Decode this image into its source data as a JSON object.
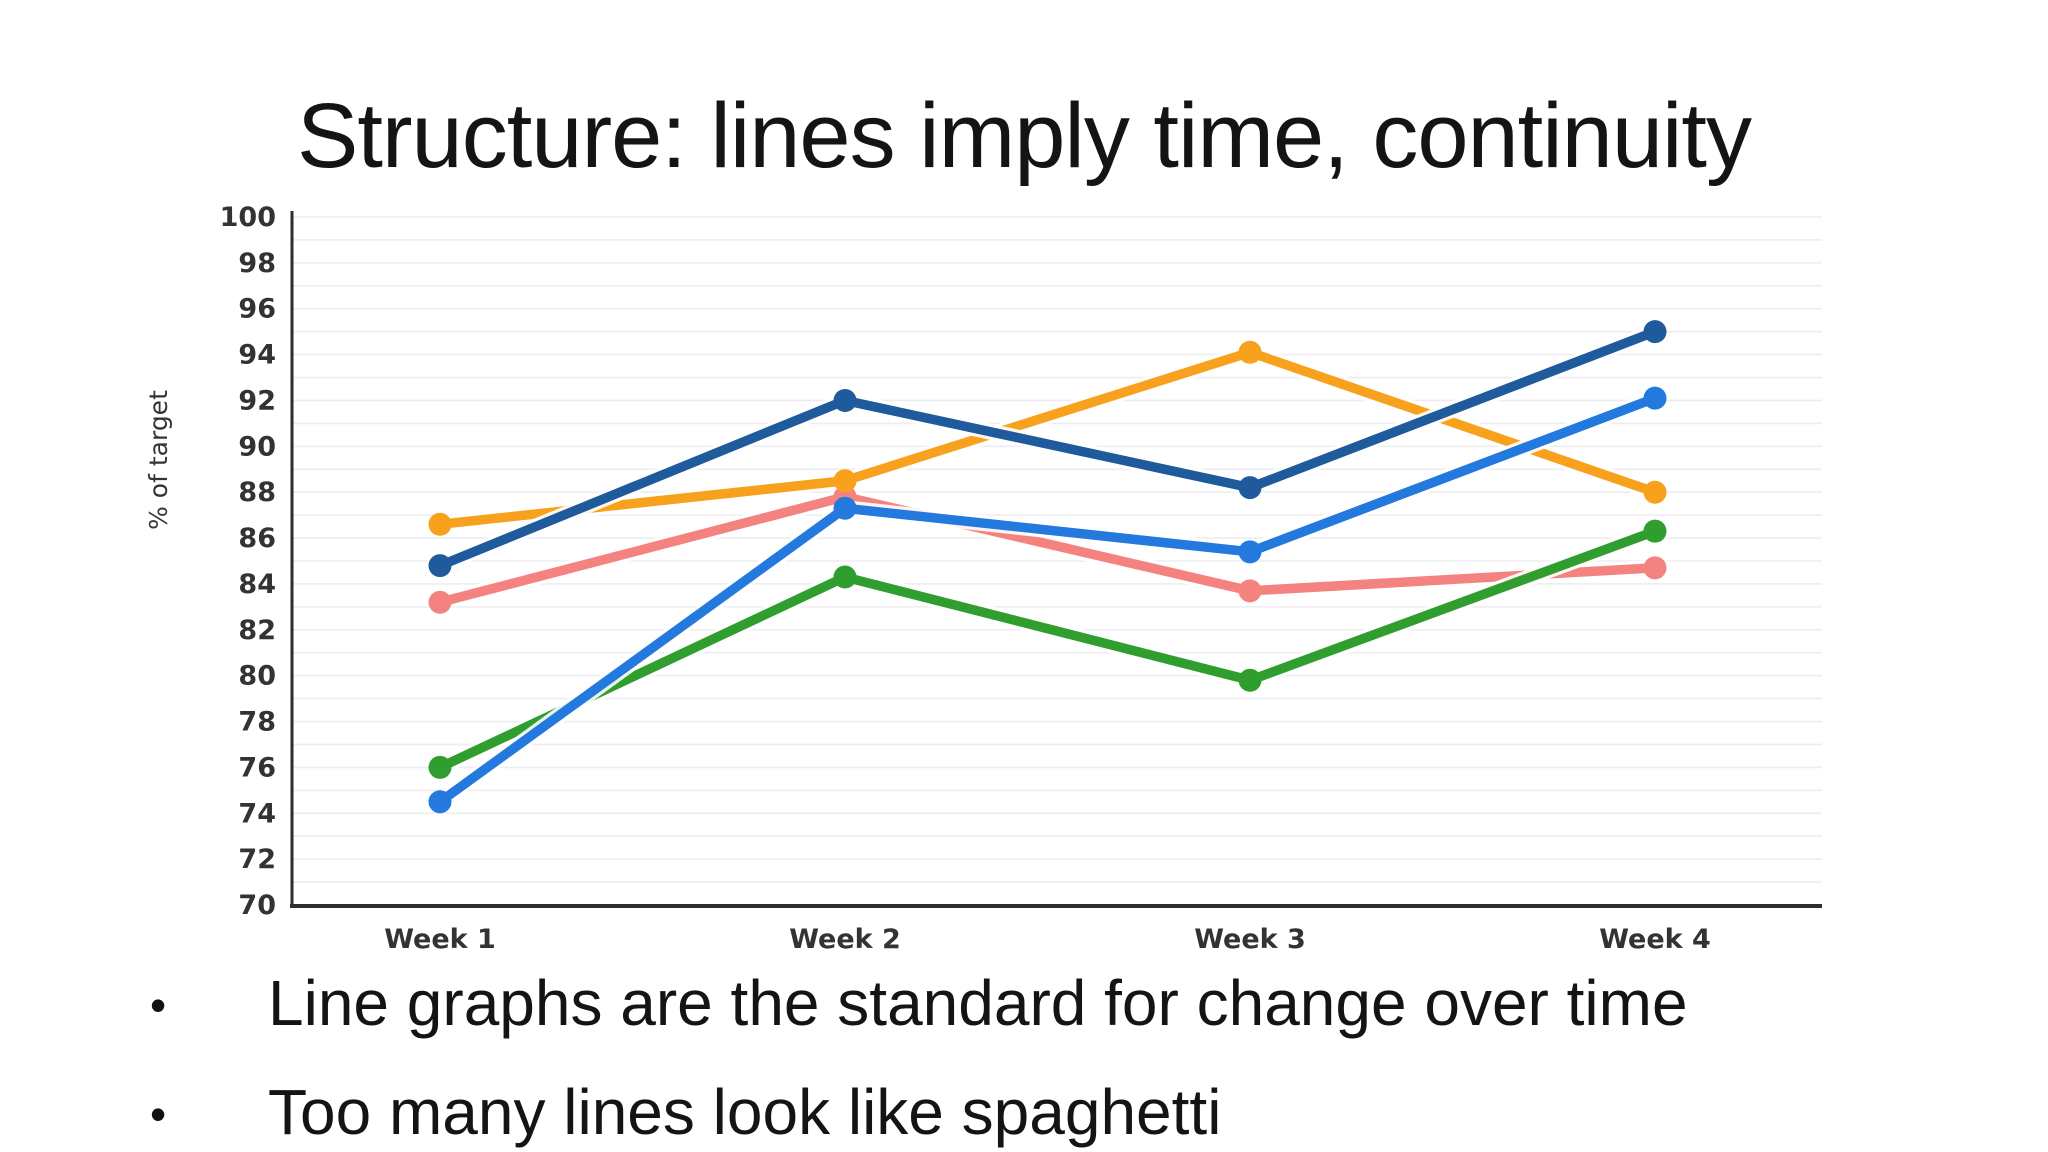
{
  "slide": {
    "title": "Structure: lines imply time, continuity",
    "bullet_char": "•",
    "bullets": [
      "Line graphs are the standard for change over time",
      "Too many lines look like spaghetti"
    ]
  },
  "chart_data": {
    "type": "line",
    "x": [
      "Week 1",
      "Week 2",
      "Week 3",
      "Week 4"
    ],
    "xlabel": "",
    "ylabel": "% of target",
    "ylim": [
      70,
      100
    ],
    "ytick_step": 2,
    "minor_grid_step": 1,
    "grid": "horizontal",
    "legend": "none",
    "series": [
      {
        "name": "salmon",
        "color": "#f4827f",
        "values": [
          83.2,
          87.8,
          83.7,
          84.7
        ]
      },
      {
        "name": "orange",
        "color": "#f7a11d",
        "values": [
          86.6,
          88.5,
          94.1,
          88.0
        ]
      },
      {
        "name": "green",
        "color": "#2f9e2f",
        "values": [
          76.0,
          84.3,
          79.8,
          86.3
        ]
      },
      {
        "name": "navy",
        "color": "#1e5a9c",
        "values": [
          84.8,
          92.0,
          88.2,
          95.0
        ]
      },
      {
        "name": "blue",
        "color": "#2379dd",
        "values": [
          74.5,
          87.3,
          85.4,
          92.1
        ]
      }
    ],
    "axis_color": "#2e2e2e",
    "grid_color": "#ededf1",
    "tick_label_color": "#333333"
  }
}
